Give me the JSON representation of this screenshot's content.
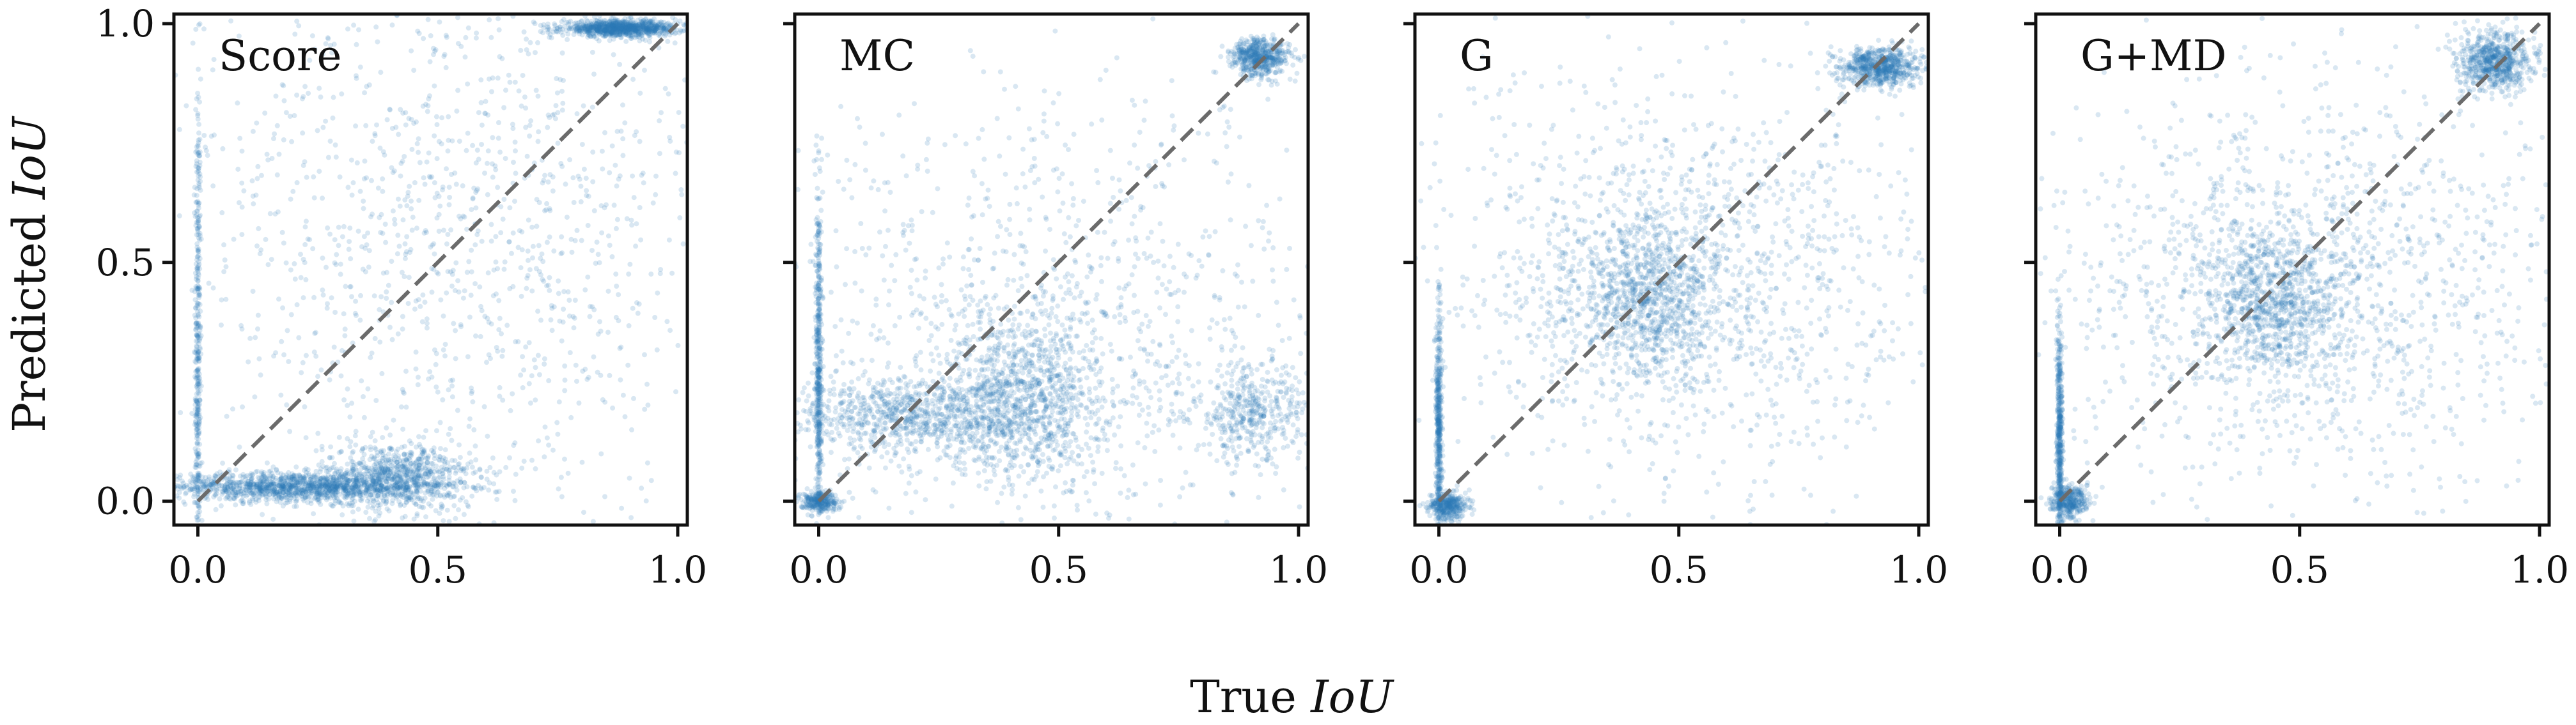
{
  "chart_data": {
    "type": "scatter",
    "xlabel_prefix": "True ",
    "xlabel_var": "IoU",
    "ylabel_prefix": "Predicted ",
    "ylabel_var": "IoU",
    "xlim": [
      -0.05,
      1.02
    ],
    "ylim": [
      -0.05,
      1.02
    ],
    "xticks": [
      0.0,
      0.5,
      1.0
    ],
    "xtick_labels": [
      "0.0",
      "0.5",
      "1.0"
    ],
    "yticks": [
      0.0,
      0.5,
      1.0
    ],
    "ytick_labels": [
      "0.0",
      "0.5",
      "1.0"
    ],
    "grid": false,
    "reference_line": {
      "x": [
        0,
        1
      ],
      "y": [
        0,
        1
      ],
      "style": "dashed",
      "color": "#6b6b6b"
    },
    "point_color": "#2f78b7",
    "panels": [
      {
        "title": "Score",
        "clusters": [
          {
            "cx": 0.0,
            "cy": 0.3,
            "sx": 0.003,
            "sy": 0.3,
            "weight": 0.06
          },
          {
            "cx": 0.2,
            "cy": 0.03,
            "sx": 0.13,
            "sy": 0.015,
            "weight": 0.18
          },
          {
            "cx": 0.42,
            "cy": 0.05,
            "sx": 0.08,
            "sy": 0.035,
            "weight": 0.12
          },
          {
            "cx": 0.88,
            "cy": 0.99,
            "sx": 0.06,
            "sy": 0.008,
            "weight": 0.14
          },
          {
            "cx": 0.55,
            "cy": 0.55,
            "sx": 0.3,
            "sy": 0.3,
            "weight": 0.18
          }
        ]
      },
      {
        "title": "MC",
        "clusters": [
          {
            "cx": 0.0,
            "cy": 0.28,
            "sx": 0.003,
            "sy": 0.2,
            "weight": 0.07
          },
          {
            "cx": 0.0,
            "cy": 0.0,
            "sx": 0.02,
            "sy": 0.01,
            "weight": 0.04
          },
          {
            "cx": 0.2,
            "cy": 0.18,
            "sx": 0.13,
            "sy": 0.04,
            "weight": 0.12
          },
          {
            "cx": 0.43,
            "cy": 0.22,
            "sx": 0.08,
            "sy": 0.09,
            "weight": 0.14
          },
          {
            "cx": 0.92,
            "cy": 0.93,
            "sx": 0.03,
            "sy": 0.02,
            "weight": 0.08
          },
          {
            "cx": 0.9,
            "cy": 0.18,
            "sx": 0.06,
            "sy": 0.05,
            "weight": 0.06
          },
          {
            "cx": 0.5,
            "cy": 0.35,
            "sx": 0.3,
            "sy": 0.25,
            "weight": 0.16
          }
        ]
      },
      {
        "title": "G",
        "clusters": [
          {
            "cx": 0.0,
            "cy": 0.15,
            "sx": 0.003,
            "sy": 0.13,
            "weight": 0.07
          },
          {
            "cx": 0.02,
            "cy": -0.01,
            "sx": 0.02,
            "sy": 0.015,
            "weight": 0.05
          },
          {
            "cx": 0.44,
            "cy": 0.43,
            "sx": 0.08,
            "sy": 0.08,
            "weight": 0.13
          },
          {
            "cx": 0.92,
            "cy": 0.91,
            "sx": 0.04,
            "sy": 0.02,
            "weight": 0.1
          },
          {
            "cx": 0.5,
            "cy": 0.45,
            "sx": 0.28,
            "sy": 0.22,
            "weight": 0.2
          }
        ]
      },
      {
        "title": "G+MD",
        "clusters": [
          {
            "cx": 0.0,
            "cy": 0.13,
            "sx": 0.003,
            "sy": 0.12,
            "weight": 0.07
          },
          {
            "cx": 0.02,
            "cy": 0.0,
            "sx": 0.02,
            "sy": 0.015,
            "weight": 0.05
          },
          {
            "cx": 0.44,
            "cy": 0.42,
            "sx": 0.08,
            "sy": 0.08,
            "weight": 0.13
          },
          {
            "cx": 0.91,
            "cy": 0.92,
            "sx": 0.04,
            "sy": 0.03,
            "weight": 0.1
          },
          {
            "cx": 0.5,
            "cy": 0.45,
            "sx": 0.28,
            "sy": 0.22,
            "weight": 0.2
          }
        ]
      }
    ]
  }
}
